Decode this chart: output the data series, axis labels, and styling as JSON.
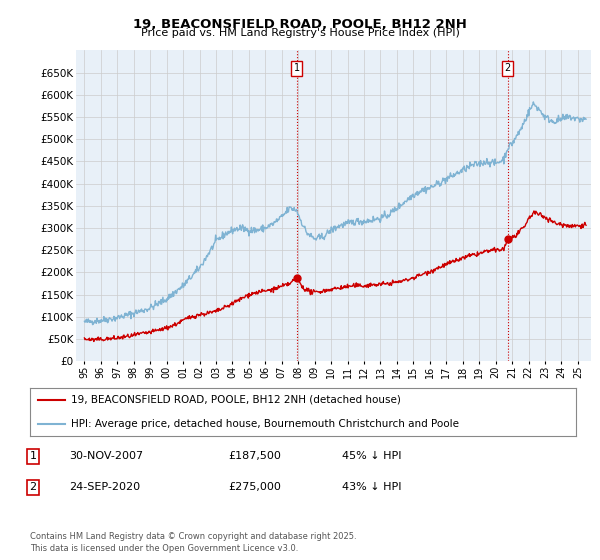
{
  "title": "19, BEACONSFIELD ROAD, POOLE, BH12 2NH",
  "subtitle": "Price paid vs. HM Land Registry's House Price Index (HPI)",
  "legend_line1": "19, BEACONSFIELD ROAD, POOLE, BH12 2NH (detached house)",
  "legend_line2": "HPI: Average price, detached house, Bournemouth Christchurch and Poole",
  "transaction1_label": "1",
  "transaction1_date": "30-NOV-2007",
  "transaction1_price": "£187,500",
  "transaction1_hpi": "45% ↓ HPI",
  "transaction2_label": "2",
  "transaction2_date": "24-SEP-2020",
  "transaction2_price": "£275,000",
  "transaction2_hpi": "43% ↓ HPI",
  "footnote": "Contains HM Land Registry data © Crown copyright and database right 2025.\nThis data is licensed under the Open Government Licence v3.0.",
  "ylim": [
    0,
    700000
  ],
  "yticks": [
    0,
    50000,
    100000,
    150000,
    200000,
    250000,
    300000,
    350000,
    400000,
    450000,
    500000,
    550000,
    600000,
    650000
  ],
  "red_color": "#cc0000",
  "blue_color": "#7fb3d3",
  "blue_fill": "#d6e8f5",
  "marker1_date": 2007.92,
  "marker1_price": 187500,
  "marker2_date": 2020.73,
  "marker2_price": 275000,
  "vline1_date": 2007.92,
  "vline2_date": 2020.73,
  "background_color": "#ffffff",
  "grid_color": "#cccccc",
  "plot_bg": "#e8f0f8"
}
